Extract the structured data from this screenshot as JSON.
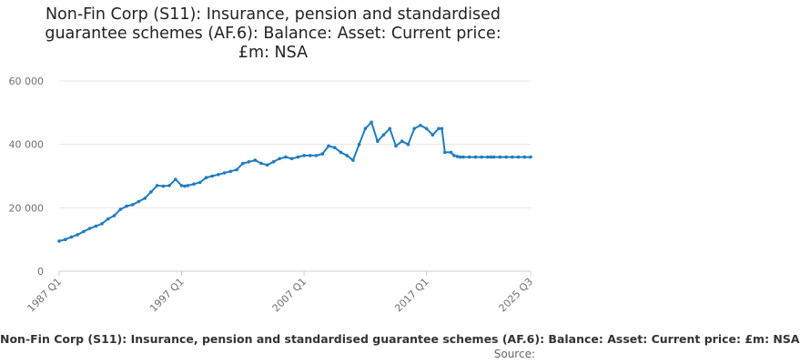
{
  "title_lines": [
    "Non-Fin Corp (S11): Insurance, pension and standardised",
    "guarantee schemes (AF.6): Balance: Asset: Current price:",
    "£m: NSA"
  ],
  "legend_label": "Non-Fin Corp (S11): Insurance, pension and standardised guarantee schemes (AF.6): Balance: Asset: Current price: £m: NSA",
  "source_label": "Source:",
  "colors": {
    "series": "#1f7cbf",
    "grid": "#e6e6e6",
    "axis": "#cccccc"
  },
  "chart_data": {
    "type": "line",
    "title": "Non-Fin Corp (S11): Insurance, pension and standardised guarantee schemes (AF.6): Balance: Asset: Current price: £m: NSA",
    "xlabel": "",
    "ylabel": "",
    "ylim": [
      0,
      60000
    ],
    "y_ticks": [
      0,
      20000,
      40000,
      60000
    ],
    "y_tick_labels": [
      "0",
      "20 000",
      "40 000",
      "60 000"
    ],
    "x_tick_labels": [
      "1987 Q1",
      "1997 Q1",
      "2007 Q1",
      "2017 Q1",
      "2025 Q3"
    ],
    "x_tick_years": [
      1987,
      1997,
      2007,
      2017,
      2025.5
    ],
    "grid": true,
    "legend_position": "bottom",
    "series": [
      {
        "name": "Non-Fin Corp (S11): Insurance, pension and standardised guarantee schemes (AF.6): Balance: Asset: Current price: £m: NSA",
        "x": [
          1987.0,
          1987.5,
          1988.0,
          1988.5,
          1989.0,
          1989.5,
          1990.0,
          1990.5,
          1991.0,
          1991.5,
          1992.0,
          1992.5,
          1993.0,
          1993.5,
          1994.0,
          1994.5,
          1995.0,
          1995.5,
          1996.0,
          1996.5,
          1997.0,
          1997.25,
          1997.5,
          1998.0,
          1998.5,
          1999.0,
          1999.5,
          2000.0,
          2000.5,
          2001.0,
          2001.5,
          2002.0,
          2002.5,
          2003.0,
          2003.5,
          2004.0,
          2004.5,
          2005.0,
          2005.5,
          2006.0,
          2006.5,
          2007.0,
          2007.5,
          2008.0,
          2008.5,
          2009.0,
          2009.5,
          2010.0,
          2010.5,
          2011.0,
          2011.5,
          2012.0,
          2012.5,
          2013.0,
          2013.5,
          2014.0,
          2014.5,
          2015.0,
          2015.5,
          2016.0,
          2016.5,
          2017.0,
          2017.5,
          2018.0,
          2018.25,
          2018.5,
          2019.0,
          2019.25,
          2019.5,
          2019.75,
          2020.0,
          2020.5,
          2021.0,
          2021.5,
          2022.0,
          2022.25,
          2022.5,
          2023.0,
          2023.5,
          2024.0,
          2024.5,
          2025.0,
          2025.5
        ],
        "values": [
          9500,
          10000,
          10800,
          11500,
          12500,
          13500,
          14200,
          15000,
          16500,
          17500,
          19500,
          20500,
          21000,
          22000,
          23000,
          25000,
          27000,
          26800,
          27000,
          29000,
          27000,
          26800,
          27000,
          27500,
          28000,
          29500,
          30000,
          30500,
          31000,
          31500,
          32000,
          34000,
          34500,
          35000,
          34000,
          33500,
          34500,
          35500,
          36000,
          35500,
          36000,
          36500,
          36500,
          36500,
          37000,
          39500,
          39000,
          37500,
          36500,
          35000,
          40000,
          45000,
          47000,
          41000,
          43000,
          45000,
          39500,
          41000,
          40000,
          45000,
          46000,
          45000,
          43000,
          45000,
          45000,
          37500,
          37500,
          36500,
          36200,
          36000,
          36000,
          36000,
          36000,
          36000,
          36000,
          36000,
          36000,
          36000,
          36000,
          36000,
          36000,
          36000,
          36000
        ]
      }
    ]
  }
}
